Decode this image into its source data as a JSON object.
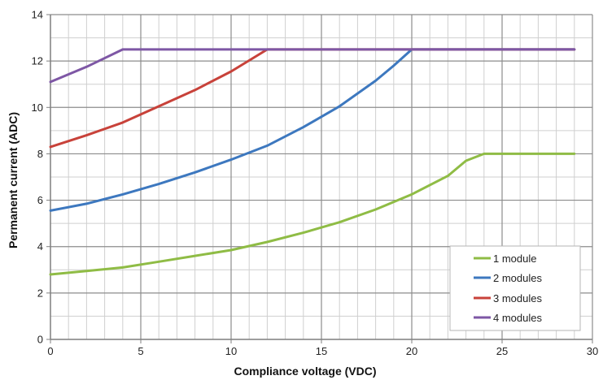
{
  "chart_data": {
    "type": "line",
    "title": "",
    "xlabel": "Compliance voltage (VDC)",
    "ylabel": "Permanent current (ADC)",
    "xlim": [
      0,
      30
    ],
    "ylim": [
      0,
      14
    ],
    "x_ticks": [
      0,
      5,
      10,
      15,
      20,
      25,
      30
    ],
    "y_ticks": [
      0,
      2,
      4,
      6,
      8,
      10,
      12,
      14
    ],
    "x_minor_step": 1,
    "y_minor_step": 1,
    "grid": true,
    "legend_position": "bottom-right",
    "series": [
      {
        "name": "1 module",
        "color": "#8fbc45",
        "points": [
          [
            0,
            2.8
          ],
          [
            2,
            2.95
          ],
          [
            4,
            3.1
          ],
          [
            6,
            3.35
          ],
          [
            8,
            3.6
          ],
          [
            10,
            3.85
          ],
          [
            12,
            4.2
          ],
          [
            14,
            4.6
          ],
          [
            16,
            5.05
          ],
          [
            18,
            5.6
          ],
          [
            20,
            6.25
          ],
          [
            22,
            7.05
          ],
          [
            23,
            7.7
          ],
          [
            24,
            8.0
          ],
          [
            29,
            8.0
          ]
        ]
      },
      {
        "name": "2 modules",
        "color": "#3d78bf",
        "points": [
          [
            0,
            5.55
          ],
          [
            2,
            5.85
          ],
          [
            4,
            6.25
          ],
          [
            6,
            6.7
          ],
          [
            8,
            7.2
          ],
          [
            10,
            7.75
          ],
          [
            12,
            8.35
          ],
          [
            14,
            9.15
          ],
          [
            16,
            10.05
          ],
          [
            18,
            11.15
          ],
          [
            19,
            11.8
          ],
          [
            20,
            12.5
          ],
          [
            29,
            12.5
          ]
        ]
      },
      {
        "name": "3 modules",
        "color": "#c8423a",
        "points": [
          [
            0,
            8.3
          ],
          [
            2,
            8.8
          ],
          [
            4,
            9.35
          ],
          [
            6,
            10.05
          ],
          [
            8,
            10.75
          ],
          [
            10,
            11.55
          ],
          [
            12,
            12.5
          ],
          [
            29,
            12.5
          ]
        ]
      },
      {
        "name": "4 modules",
        "color": "#7e57a5",
        "points": [
          [
            0,
            11.1
          ],
          [
            2,
            11.75
          ],
          [
            4,
            12.5
          ],
          [
            29,
            12.5
          ]
        ]
      }
    ]
  }
}
